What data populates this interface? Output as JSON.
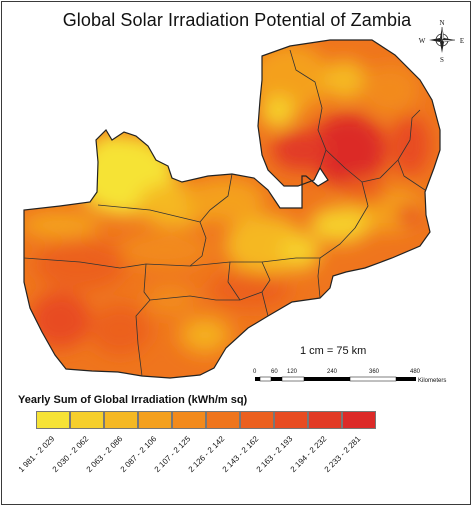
{
  "title": "Global Solar Irradiation Potential of Zambia",
  "compass": {
    "north": "N",
    "south": "S",
    "east": "E",
    "west": "W",
    "icon": "compass-rose-icon"
  },
  "scale": {
    "text": "1 cm = 75 km",
    "ticks": [
      "0",
      "60",
      "120",
      "240",
      "360",
      "480"
    ],
    "unit": "Kilometers"
  },
  "legend": {
    "title": "Yearly Sum of Global Irradiation (kWh/m sq)",
    "classes": [
      {
        "label": "1 981 - 2 029",
        "color": "#f6e336"
      },
      {
        "label": "2 030 - 2 062",
        "color": "#f6cf2c"
      },
      {
        "label": "2 063 - 2 086",
        "color": "#f5b824"
      },
      {
        "label": "2 087 - 2 106",
        "color": "#f4a01e"
      },
      {
        "label": "2 107 - 2 125",
        "color": "#f28a1c"
      },
      {
        "label": "2 126 - 2 142",
        "color": "#ef751d"
      },
      {
        "label": "2 143 - 2 162",
        "color": "#ec601f"
      },
      {
        "label": "2 163 - 2 193",
        "color": "#e84c22"
      },
      {
        "label": "2 194 - 2 232",
        "color": "#e23a25"
      },
      {
        "label": "2 233 - 2 281",
        "color": "#dc2a28"
      }
    ]
  }
}
